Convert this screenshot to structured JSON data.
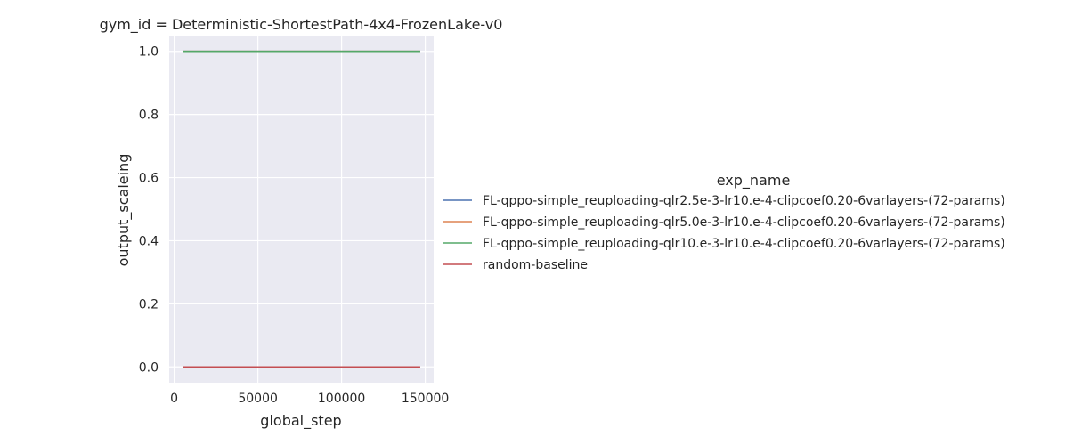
{
  "chart_data": {
    "type": "line",
    "title": "gym_id = Deterministic-ShortestPath-4x4-FrozenLake-v0",
    "xlabel": "global_step",
    "ylabel": "output_scaleing",
    "xlim": [
      -3000,
      155000
    ],
    "ylim": [
      -0.05,
      1.05
    ],
    "xticks": [
      0,
      50000,
      100000,
      150000
    ],
    "xtick_labels": [
      "0",
      "50000",
      "100000",
      "150000"
    ],
    "yticks": [
      0.0,
      0.2,
      0.4,
      0.6,
      0.8,
      1.0
    ],
    "ytick_labels": [
      "0.0",
      "0.2",
      "0.4",
      "0.6",
      "0.8",
      "1.0"
    ],
    "grid": true,
    "background": "#eaeaf2",
    "legend_title": "exp_name",
    "legend_position": "right",
    "series": [
      {
        "name": "FL-qppo-simple_reuploading-qlr2.5e-3-lr10.e-4-clipcoef0.20-6varlayers-(72-params)",
        "color": "#4c72b0",
        "x": [
          5000,
          147000
        ],
        "y": [
          1.0,
          1.0
        ]
      },
      {
        "name": "FL-qppo-simple_reuploading-qlr5.0e-3-lr10.e-4-clipcoef0.20-6varlayers-(72-params)",
        "color": "#dd8452",
        "x": [
          5000,
          147000
        ],
        "y": [
          1.0,
          1.0
        ]
      },
      {
        "name": "FL-qppo-simple_reuploading-qlr10.e-3-lr10.e-4-clipcoef0.20-6varlayers-(72-params)",
        "color": "#55a868",
        "x": [
          5000,
          147000
        ],
        "y": [
          1.0,
          1.0
        ]
      },
      {
        "name": "random-baseline",
        "color": "#c44e52",
        "x": [
          5000,
          147000
        ],
        "y": [
          0.0,
          0.0
        ]
      }
    ]
  }
}
